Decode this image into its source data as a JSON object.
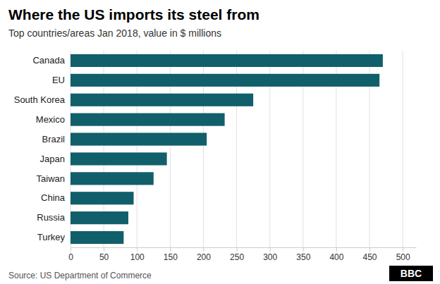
{
  "chart_data": {
    "type": "bar",
    "orientation": "horizontal",
    "title": "Where the US imports its steel from",
    "subtitle": "Top countries/areas Jan 2018, value in $ millions",
    "source": "Source: US Department of Commerce",
    "annotations": [
      "BBC"
    ],
    "categories": [
      "Turkey",
      "Russia",
      "China",
      "Taiwan",
      "Japan",
      "Brazil",
      "Mexico",
      "South Korea",
      "EU",
      "Canada"
    ],
    "values": [
      80,
      87,
      95,
      125,
      145,
      205,
      232,
      275,
      465,
      470
    ],
    "color": "#115f6a",
    "xlim": [
      0,
      520
    ],
    "xticks": [
      0,
      50,
      100,
      150,
      200,
      250,
      300,
      350,
      400,
      450,
      500
    ],
    "grid": true
  }
}
